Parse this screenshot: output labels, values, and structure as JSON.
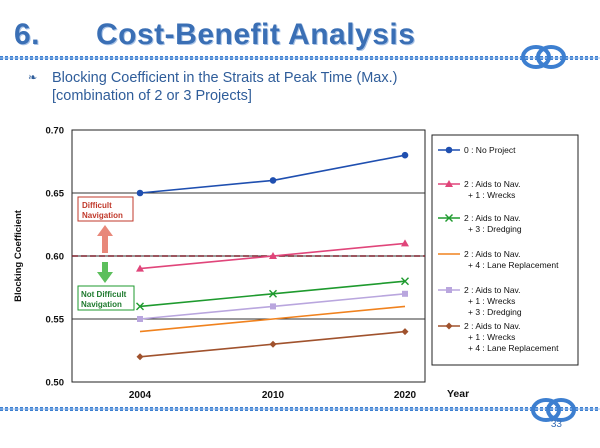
{
  "slide": {
    "section_number": "6.",
    "title": "Cost-Benefit Analysis",
    "subtitle_line1": "Blocking Coefficient in the Straits at Peak Time (Max.)",
    "subtitle_line2": "[combination of  2 or 3 Projects]",
    "bullet_glyph": "❧",
    "page_number": "33"
  },
  "colors": {
    "title": "#3a6fb5",
    "rope": "#3d7fd0",
    "subtitle": "#2f5d9a"
  },
  "chart_data": {
    "type": "line",
    "x": [
      2004,
      2010,
      2020
    ],
    "xlabel": "Year",
    "ylabel": "Blocking Coefficient",
    "ylim": [
      0.5,
      0.7
    ],
    "yticks": [
      "0.50",
      "0.55",
      "0.60",
      "0.65",
      "0.70"
    ],
    "threshold": 0.6,
    "annotation_above": [
      "Difficult",
      "Navigation"
    ],
    "annotation_below": [
      "Not Difficult",
      "Navigation"
    ],
    "legend_position": "right",
    "series": [
      {
        "name": [
          "0 : No Project"
        ],
        "values": [
          0.65,
          0.66,
          0.68
        ],
        "color": "#1f4fb0",
        "marker": "circle"
      },
      {
        "name": [
          "2 : Aids to Nav.",
          "+ 1 : Wrecks"
        ],
        "values": [
          0.59,
          0.6,
          0.61
        ],
        "color": "#e0457a",
        "marker": "triangle"
      },
      {
        "name": [
          "2 : Aids to Nav.",
          "+ 3 : Dredging"
        ],
        "values": [
          0.56,
          0.57,
          0.58
        ],
        "color": "#1e9a2e",
        "marker": "x"
      },
      {
        "name": [
          "2 : Aids to Nav.",
          "+ 4 : Lane Replacement"
        ],
        "values": [
          0.54,
          0.55,
          0.56
        ],
        "color": "#f0821e",
        "marker": "none"
      },
      {
        "name": [
          "2 : Aids to Nav.",
          "+ 1 : Wrecks",
          "+ 3 : Dredging"
        ],
        "values": [
          0.55,
          0.56,
          0.57
        ],
        "color": "#b9a6de",
        "marker": "square"
      },
      {
        "name": [
          "2 : Aids to Nav.",
          "+ 1 : Wrecks",
          "+ 4 : Lane Replacement"
        ],
        "values": [
          0.52,
          0.53,
          0.54
        ],
        "color": "#a0522d",
        "marker": "diamond"
      }
    ]
  }
}
